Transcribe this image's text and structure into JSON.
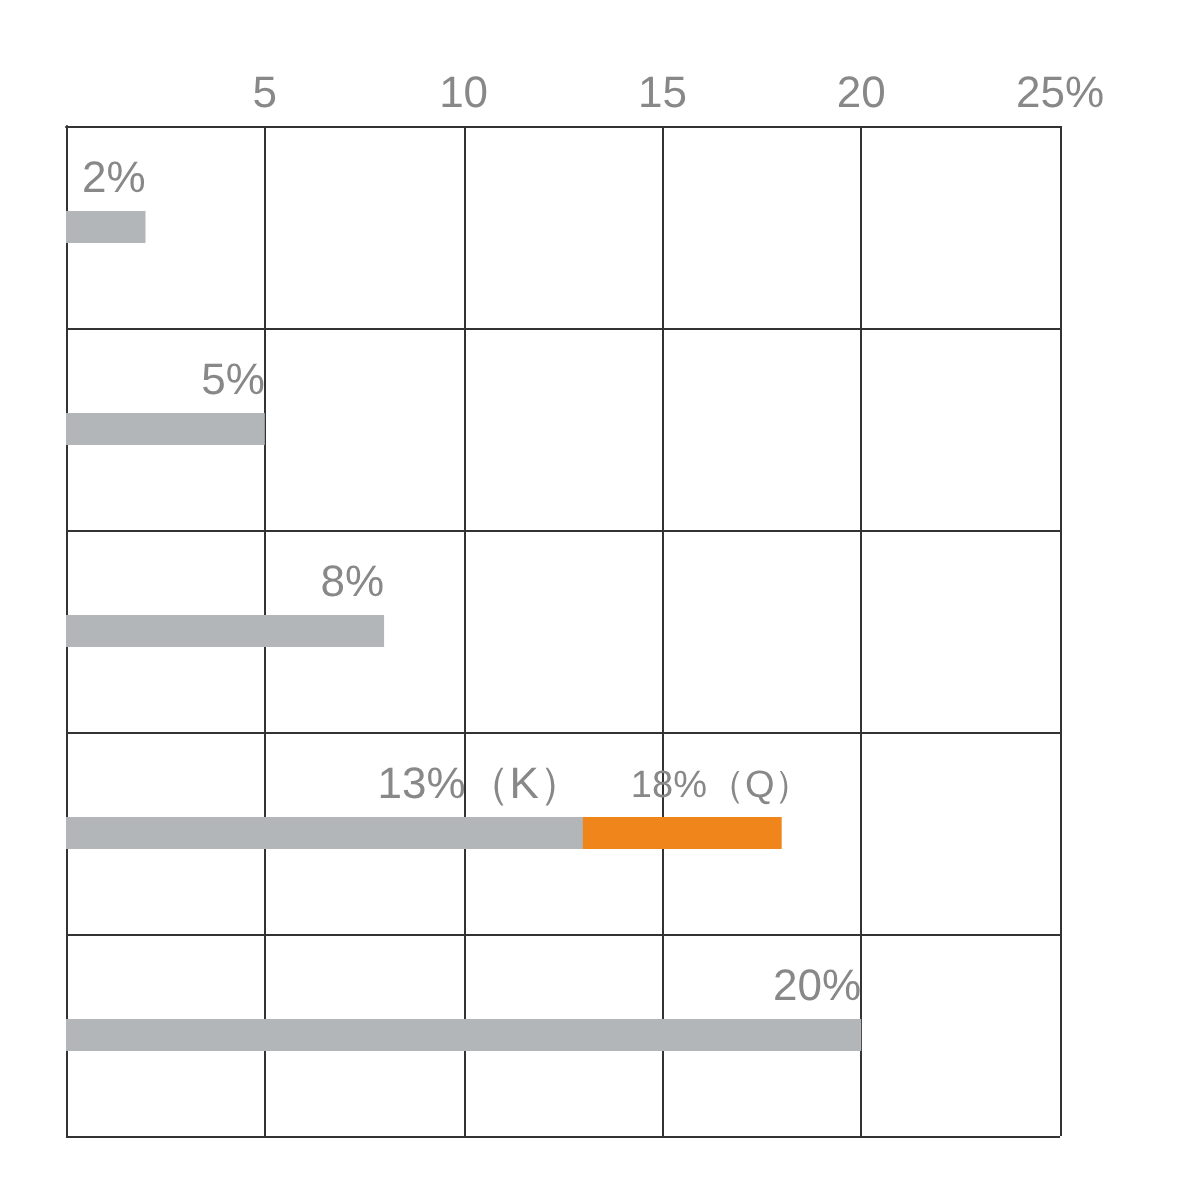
{
  "chart_data": {
    "type": "bar",
    "orientation": "horizontal",
    "categories": [
      null,
      null,
      null,
      null,
      null
    ],
    "series": [
      {
        "color": "#f0861b",
        "values": [
          null,
          null,
          null,
          18,
          null
        ],
        "value_labels": [
          null,
          null,
          null,
          "18%（Q）",
          null
        ]
      },
      {
        "color": "#b3b6b8",
        "values": [
          2,
          5,
          8,
          13,
          20
        ],
        "value_labels": [
          "2%",
          "5%",
          "8%",
          "13%（K）",
          "20%"
        ]
      }
    ],
    "xlim": [
      0,
      25
    ],
    "xticks": [
      {
        "value": 0,
        "label": null
      },
      {
        "value": 5,
        "label": "5"
      },
      {
        "value": 10,
        "label": "10"
      },
      {
        "value": 15,
        "label": "15"
      },
      {
        "value": 20,
        "label": "20"
      },
      {
        "value": 25,
        "label": "25%"
      }
    ],
    "grid": true,
    "tick_labels": "x"
  }
}
